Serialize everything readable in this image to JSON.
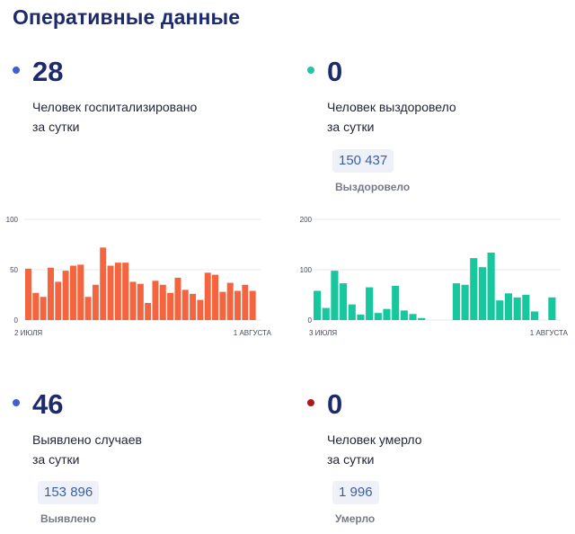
{
  "page": {
    "title": "Оперативные данные"
  },
  "colors": {
    "blue": "#3d5fd1",
    "teal": "#25c3a7",
    "red": "#b0161d",
    "orange": "#f4653f",
    "green": "#17c79e"
  },
  "stats": {
    "hospitalized": {
      "value": "28",
      "line1": "Человек госпитализировано",
      "line2": "за сутки"
    },
    "recovered": {
      "value": "0",
      "line1": "Человек выздоровело",
      "line2": "за сутки",
      "total": "150 437",
      "total_label": "Выздоровело"
    },
    "cases": {
      "value": "46",
      "line1": "Выявлено случаев",
      "line2": "за сутки",
      "total": "153 896",
      "total_label": "Выявлено"
    },
    "deaths": {
      "value": "0",
      "line1": "Человек умерло",
      "line2": "за сутки",
      "total": "1 996",
      "total_label": "Умерло"
    }
  },
  "chart_data": [
    {
      "type": "bar",
      "ylim": [
        0,
        100
      ],
      "y_ticks": [
        "0",
        "50",
        "100"
      ],
      "x_start_label": "2 ИЮЛЯ",
      "x_end_label": "1 АВГУСТА",
      "grid": true,
      "values": [
        51,
        27,
        23,
        52,
        38,
        49,
        54,
        55,
        23,
        35,
        72,
        54,
        57,
        57,
        38,
        36,
        17,
        39,
        35,
        27,
        42,
        30,
        26,
        20,
        47,
        45,
        28,
        37,
        29,
        35,
        29
      ]
    },
    {
      "type": "bar",
      "ylim": [
        0,
        200
      ],
      "y_ticks": [
        "0",
        "100",
        "200"
      ],
      "x_start_label": "3 ИЮЛЯ",
      "x_end_label": "1 АВГУСТА",
      "grid": true,
      "values": [
        58,
        24,
        98,
        73,
        31,
        11,
        65,
        14,
        22,
        68,
        19,
        12,
        4,
        0,
        0,
        0,
        73,
        70,
        123,
        105,
        134,
        39,
        53,
        45,
        50,
        17,
        0,
        45
      ]
    }
  ]
}
